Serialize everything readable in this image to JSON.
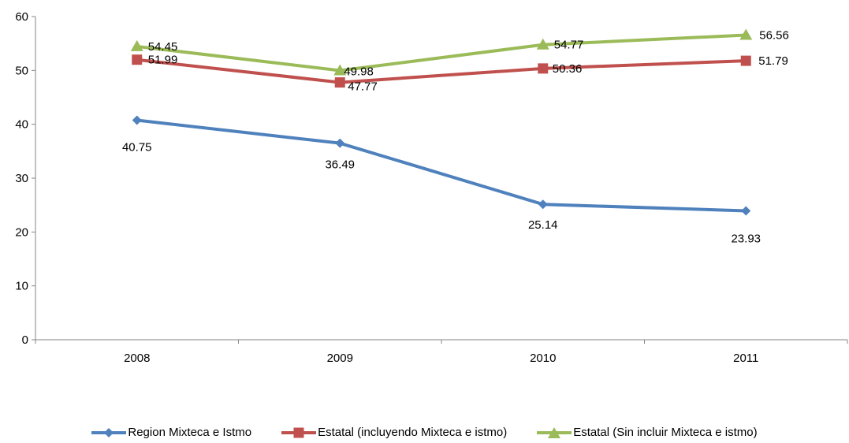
{
  "chart_data": {
    "type": "line",
    "categories": [
      "2008",
      "2009",
      "2010",
      "2011"
    ],
    "series": [
      {
        "name": "Region Mixteca e Istmo",
        "values": [
          40.75,
          36.49,
          25.14,
          23.93
        ],
        "labels": [
          "40.75",
          "36.49",
          "25.14",
          "23.93"
        ],
        "color": "#4F81BD",
        "marker": "diamond"
      },
      {
        "name": "Estatal (incluyendo Mixteca e istmo)",
        "values": [
          51.99,
          47.77,
          50.36,
          51.79
        ],
        "labels": [
          "51.99",
          "47.77",
          "50.36",
          "51.79"
        ],
        "color": "#C0504D",
        "marker": "square"
      },
      {
        "name": "Estatal (Sin incluir Mixteca e istmo)",
        "values": [
          54.45,
          49.98,
          54.77,
          56.56
        ],
        "labels": [
          "54.45",
          "49.98",
          "54.77",
          "56.56"
        ],
        "color": "#9BBB59",
        "marker": "triangle"
      }
    ],
    "ylim": [
      0,
      60
    ],
    "yticks": [
      "0",
      "10",
      "20",
      "30",
      "40",
      "50",
      "60"
    ],
    "grid": false,
    "legend": "bottom"
  }
}
